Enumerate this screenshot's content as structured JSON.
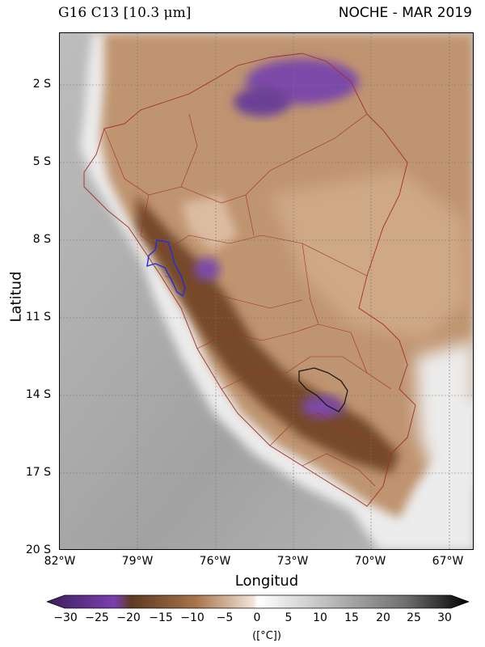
{
  "header": {
    "title_left": "G16 C13 [10.3 μm]",
    "title_right": "NOCHE - MAR 2019"
  },
  "axes": {
    "ylabel": "Latitud",
    "xlabel": "Longitud",
    "yticks": [
      "2 S",
      "5 S",
      "8 S",
      "11 S",
      "14 S",
      "17 S",
      "20 S"
    ],
    "xticks": [
      "82°W",
      "79°W",
      "76°W",
      "73°W",
      "70°W",
      "67°W"
    ]
  },
  "colorbar": {
    "ticks": [
      "−30",
      "−25",
      "−20",
      "−15",
      "−10",
      "−5",
      "0",
      "5",
      "10",
      "15",
      "20",
      "25",
      "30"
    ],
    "unit": "([°C])",
    "colors": {
      "min": "#3d1f5c",
      "purple": "#7a3fb0",
      "dark_brown": "#5e3a22",
      "brown": "#a6724a",
      "light_brown": "#e3c3a6",
      "white": "#ffffff",
      "light_gray": "#d0d0d0",
      "gray": "#8a8a8a",
      "max": "#000000"
    }
  },
  "map": {
    "colors": {
      "ocean": "#a9a9a9",
      "coast_white": "#f4f2f0",
      "andes_dark": "#6e4529",
      "amazon": "#b98a63",
      "cold_cloud": "#7a4aa6",
      "boundary": "#a0302a",
      "basin_blue": "#1f2fe0",
      "basin_black": "#111111"
    }
  }
}
